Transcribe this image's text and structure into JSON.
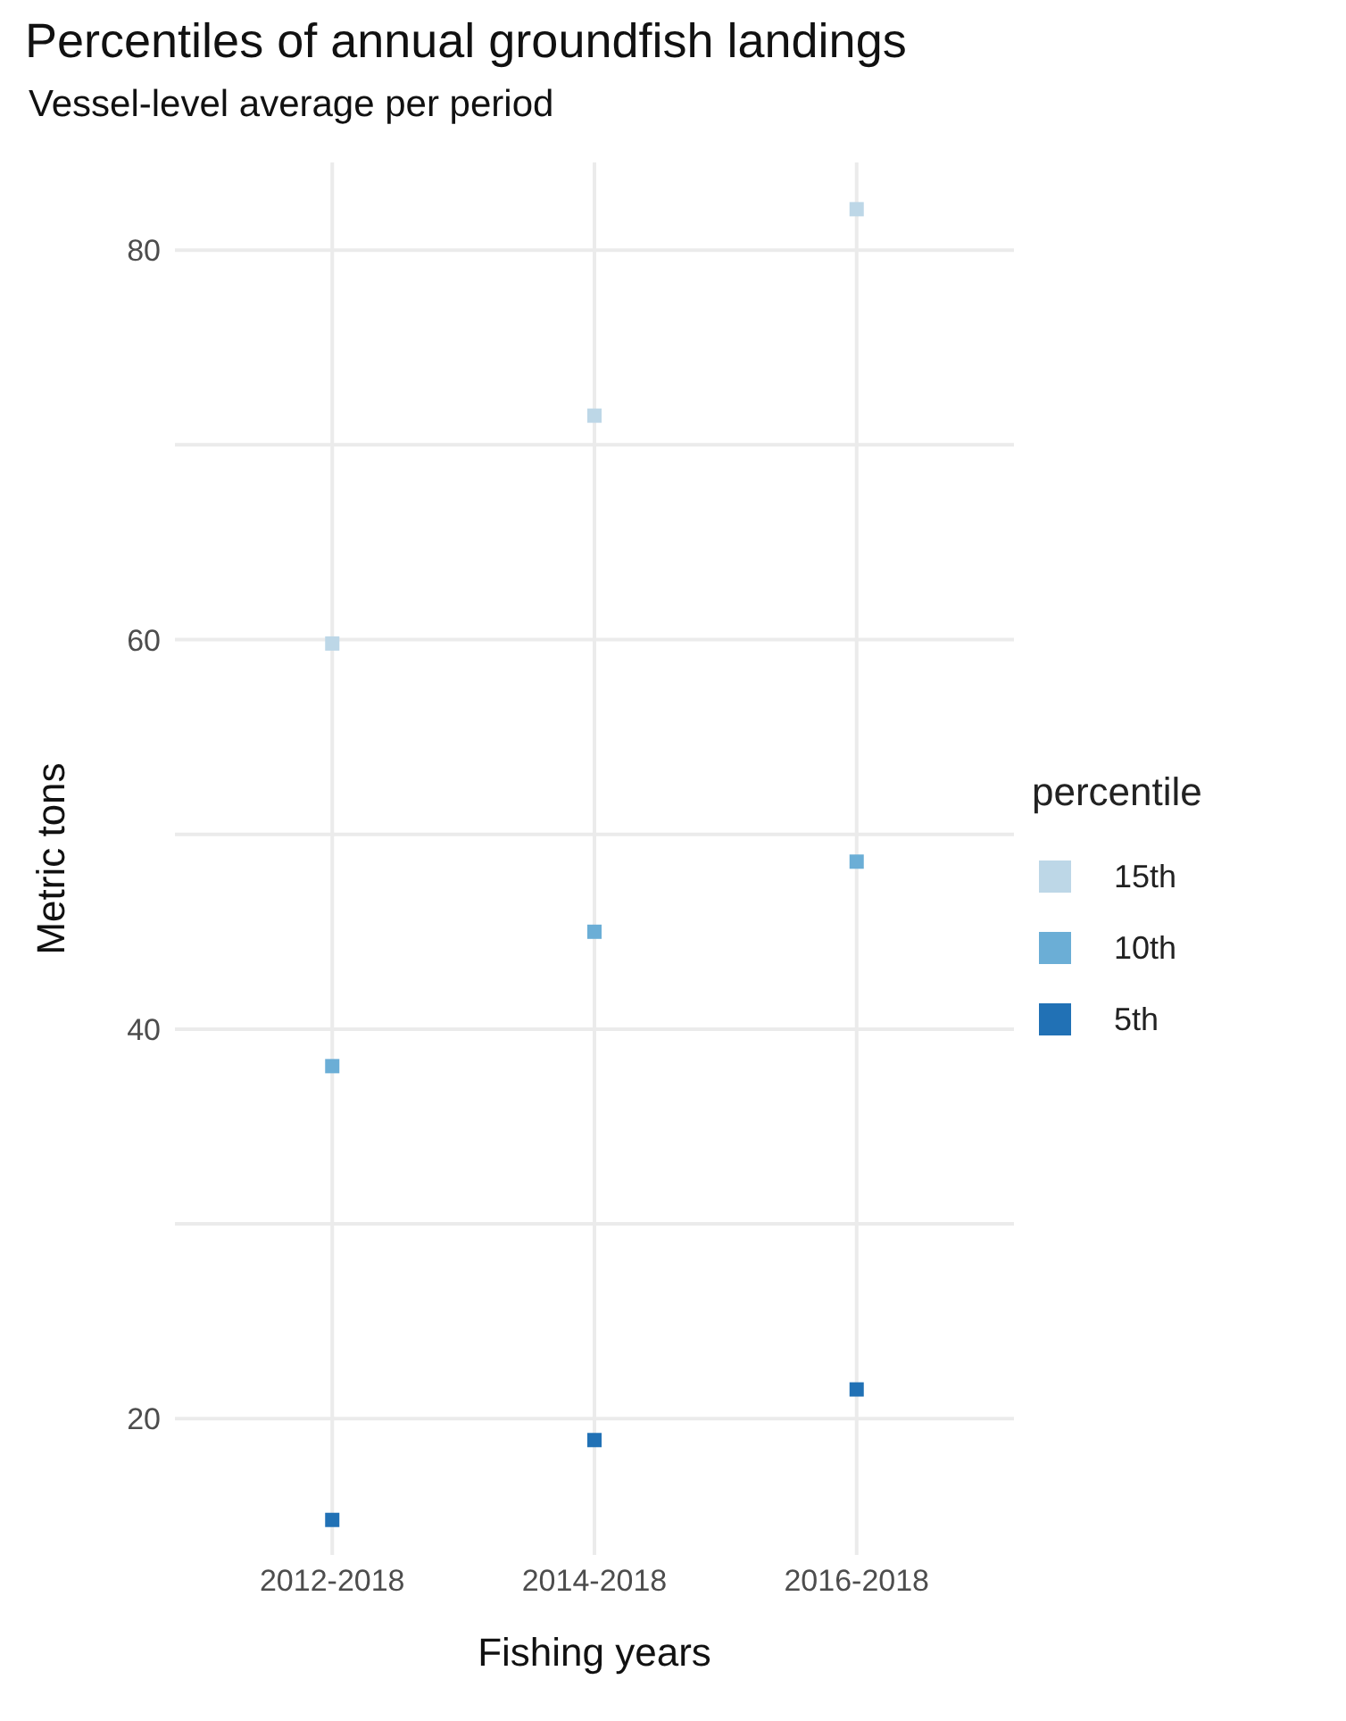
{
  "chart_data": {
    "type": "scatter",
    "title": "Percentiles of annual groundfish landings",
    "subtitle": "Vessel-level average per period",
    "xlabel": "Fishing years",
    "ylabel": "Metric tons",
    "legend_title": "percentile",
    "categories": [
      "2012-2018",
      "2014-2018",
      "2016-2018"
    ],
    "series": [
      {
        "name": "15th",
        "color": "#bdd7e7",
        "values": [
          59.8,
          71.5,
          82.1
        ]
      },
      {
        "name": "10th",
        "color": "#6baed6",
        "values": [
          38.1,
          45.0,
          48.6
        ]
      },
      {
        "name": "5th",
        "color": "#2171b5",
        "values": [
          14.8,
          18.9,
          21.5
        ]
      }
    ],
    "ylim": [
      13,
      84.5
    ],
    "yticks": [
      20,
      {
        "value": 30,
        "label": null
      },
      40,
      {
        "value": 50,
        "label": null
      },
      60,
      {
        "value": 70,
        "label": null
      },
      80
    ],
    "grid": true,
    "legend": "right",
    "marker": "square"
  }
}
